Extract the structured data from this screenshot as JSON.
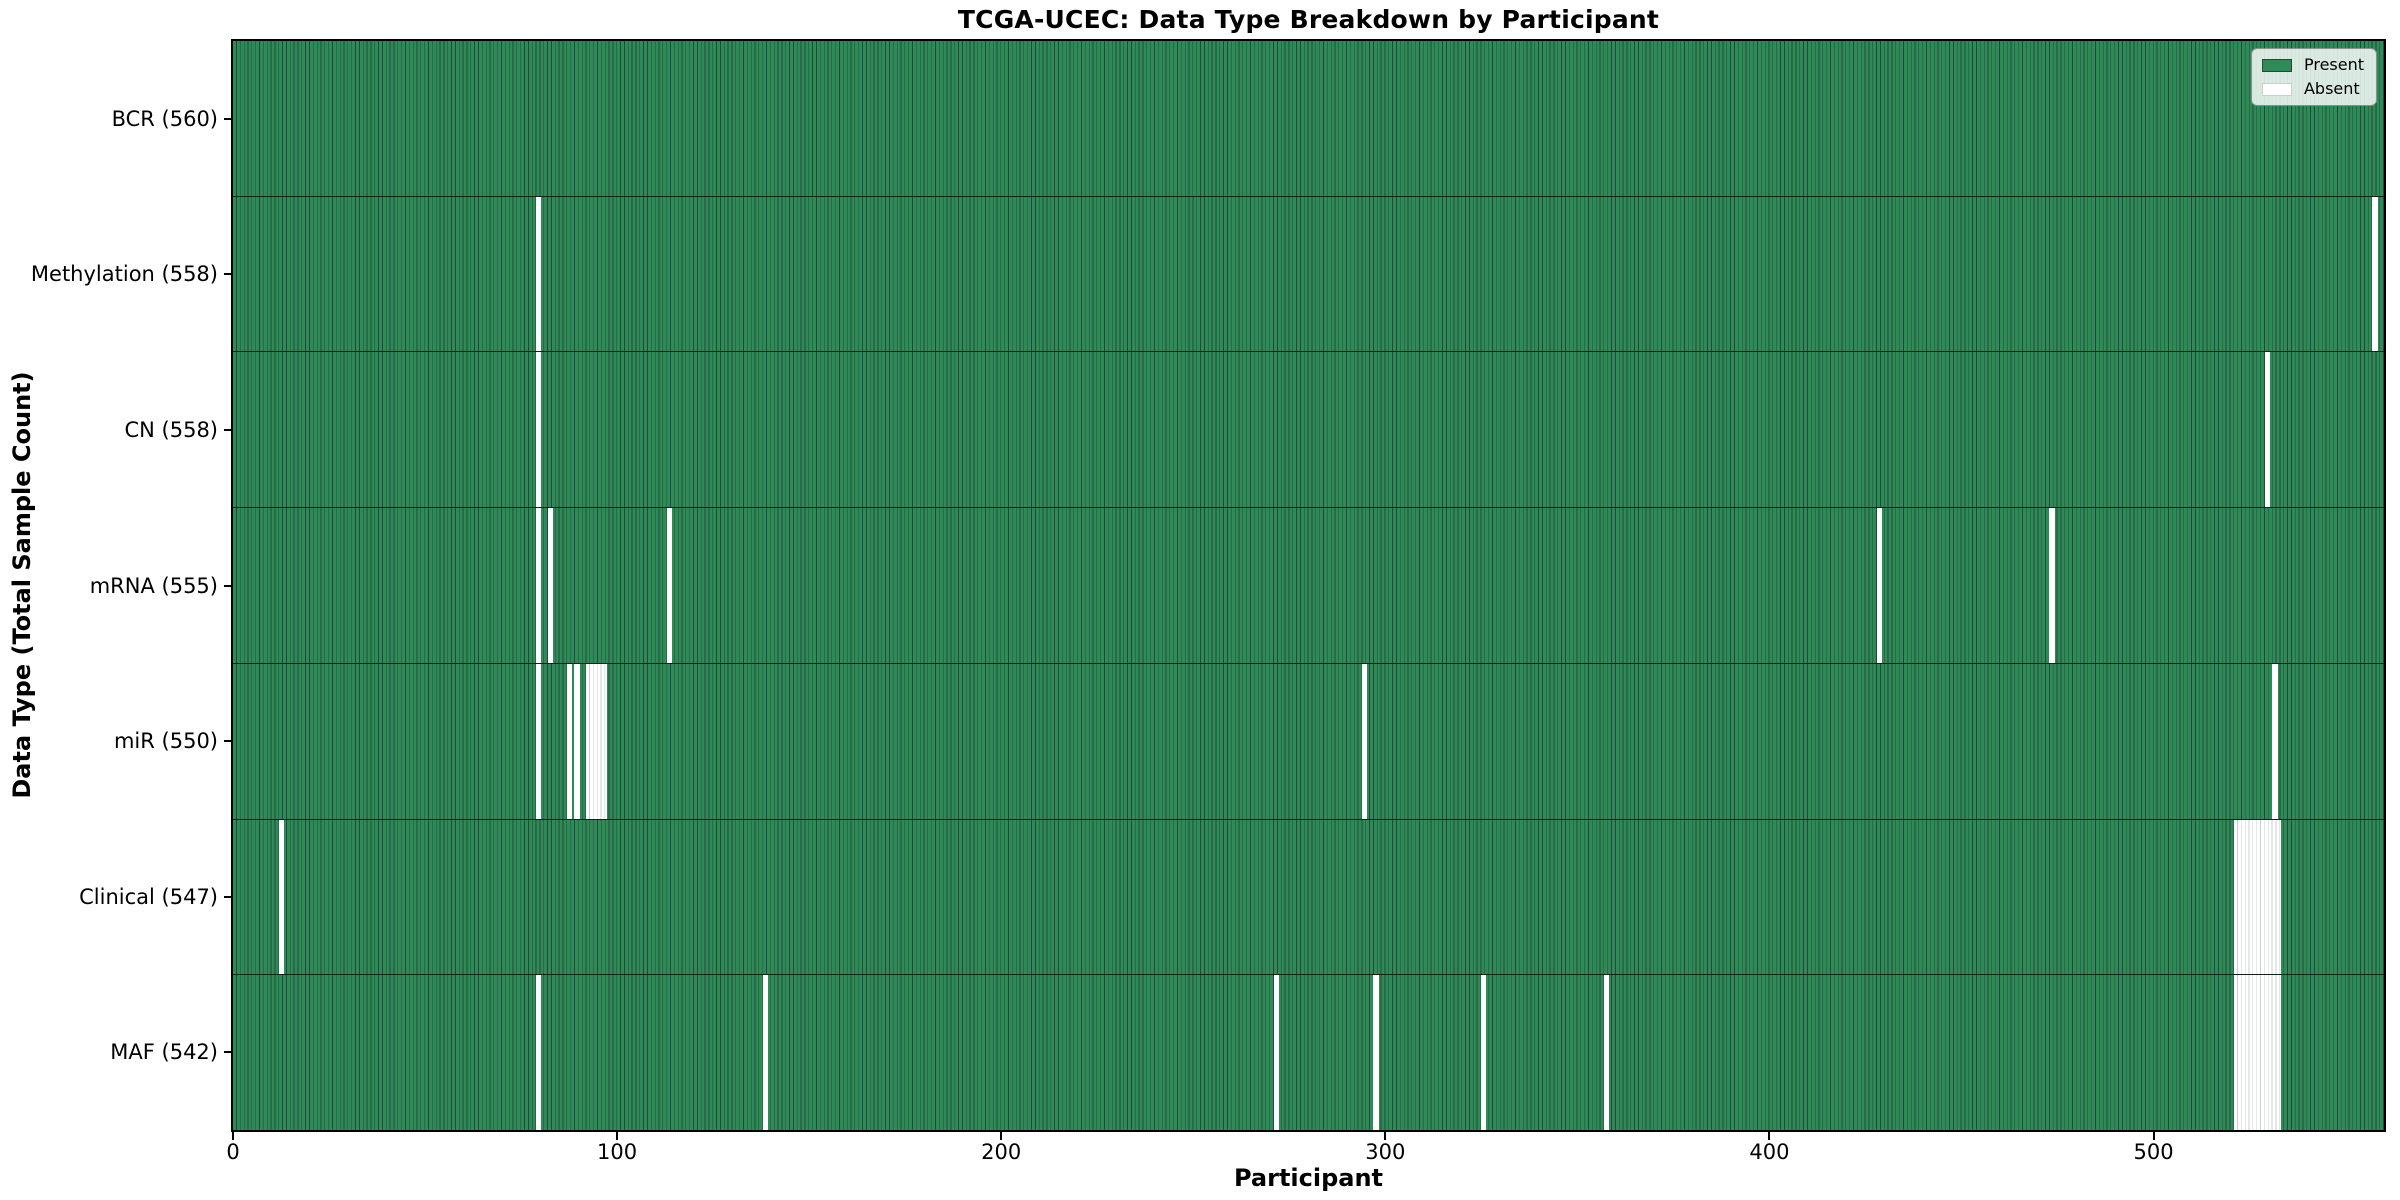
{
  "figure": {
    "title": "TCGA-UCEC: Data Type Breakdown by Participant"
  },
  "chart_data": {
    "type": "heatmap",
    "title": "TCGA-UCEC: Data Type Breakdown by Participant",
    "xlabel": "Participant",
    "ylabel": "Data Type (Total Sample Count)",
    "x_range": [
      0,
      560
    ],
    "x_ticks": [
      "0",
      "100",
      "200",
      "300",
      "400",
      "500"
    ],
    "x_tick_values": [
      0,
      100,
      200,
      300,
      400,
      500
    ],
    "total_participants": 560,
    "grid": false,
    "legend": {
      "position": "upper right",
      "entries": [
        {
          "label": "Present",
          "color": "#2e8b57"
        },
        {
          "label": "Absent",
          "color": "#ffffff"
        }
      ]
    },
    "colors": {
      "present": "#2e8b57",
      "absent": "#ffffff",
      "cell_edge": "#24483a"
    },
    "rows": [
      {
        "data_type": "BCR",
        "label": "BCR (560)",
        "present_count": 560,
        "absent_participants": []
      },
      {
        "data_type": "Methylation",
        "label": "Methylation (558)",
        "present_count": 558,
        "absent_participants": [
          79,
          557
        ]
      },
      {
        "data_type": "CN",
        "label": "CN (558)",
        "present_count": 558,
        "absent_participants": [
          79,
          529
        ]
      },
      {
        "data_type": "mRNA",
        "label": "mRNA (555)",
        "present_count": 555,
        "absent_participants": [
          79,
          82,
          113,
          428,
          473
        ]
      },
      {
        "data_type": "miR",
        "label": "miR (550)",
        "present_count": 550,
        "absent_participants": [
          79,
          87,
          89,
          92,
          93,
          94,
          95,
          96,
          294,
          531
        ]
      },
      {
        "data_type": "Clinical",
        "label": "Clinical (547)",
        "present_count": 547,
        "absent_participants": [
          12,
          521,
          522,
          523,
          524,
          525,
          526,
          527,
          528,
          529,
          530,
          531,
          532
        ]
      },
      {
        "data_type": "MAF",
        "label": "MAF (542)",
        "present_count": 542,
        "absent_participants": [
          79,
          138,
          271,
          297,
          325,
          357,
          521,
          522,
          523,
          524,
          525,
          526,
          527,
          528,
          529,
          530,
          531,
          532
        ]
      }
    ]
  }
}
